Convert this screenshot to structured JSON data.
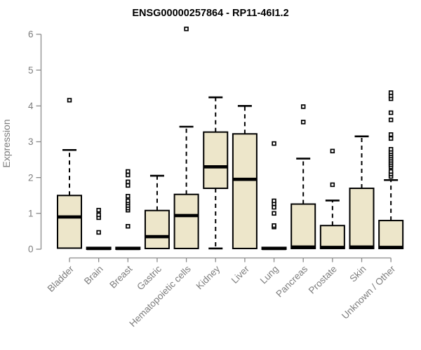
{
  "chart_data": {
    "type": "boxplot",
    "title": "ENSG00000257864 - RP11-46I1.2",
    "ylabel": "Expression",
    "xlabel": "",
    "ylim": [
      0,
      6
    ],
    "yticks": [
      0,
      1,
      2,
      3,
      4,
      5,
      6
    ],
    "grid": false,
    "legend": "none",
    "categories": [
      "Bladder",
      "Brain",
      "Breast",
      "Gastric",
      "Hematopoietic cells",
      "Kidney",
      "Liver",
      "Lung",
      "Pancreas",
      "Prostate",
      "Skin",
      "Unknown / Other"
    ],
    "boxes": [
      {
        "label": "Bladder",
        "q1": 0.03,
        "median": 0.9,
        "q3": 1.5,
        "whisker_low": 0.03,
        "whisker_high": 2.77,
        "outliers": [
          4.16
        ]
      },
      {
        "label": "Brain",
        "q1": 0.0,
        "median": 0.02,
        "q3": 0.05,
        "whisker_low": 0.0,
        "whisker_high": 0.05,
        "outliers": [
          0.47,
          0.88,
          0.96,
          1.09
        ]
      },
      {
        "label": "Breast",
        "q1": 0.0,
        "median": 0.02,
        "q3": 0.05,
        "whisker_low": 0.0,
        "whisker_high": 0.05,
        "outliers": [
          0.64,
          1.09,
          1.15,
          1.22,
          1.29,
          1.35,
          1.48,
          1.78,
          1.88,
          2.07,
          2.17
        ]
      },
      {
        "label": "Gastric",
        "q1": 0.02,
        "median": 0.35,
        "q3": 1.08,
        "whisker_low": 0.02,
        "whisker_high": 2.05,
        "outliers": []
      },
      {
        "label": "Hematopoietic cells",
        "q1": 0.02,
        "median": 0.94,
        "q3": 1.53,
        "whisker_low": 0.02,
        "whisker_high": 3.42,
        "outliers": [
          6.15
        ]
      },
      {
        "label": "Kidney",
        "q1": 1.7,
        "median": 2.3,
        "q3": 3.27,
        "whisker_low": 0.02,
        "whisker_high": 4.24,
        "outliers": []
      },
      {
        "label": "Liver",
        "q1": 0.02,
        "median": 1.95,
        "q3": 3.22,
        "whisker_low": 0.02,
        "whisker_high": 4.0,
        "outliers": []
      },
      {
        "label": "Lung",
        "q1": 0.0,
        "median": 0.02,
        "q3": 0.05,
        "whisker_low": 0.0,
        "whisker_high": 0.05,
        "outliers": [
          0.62,
          0.66,
          1.0,
          1.17,
          1.27,
          1.35,
          2.95
        ]
      },
      {
        "label": "Pancreas",
        "q1": 0.02,
        "median": 0.06,
        "q3": 1.26,
        "whisker_low": 0.02,
        "whisker_high": 2.53,
        "outliers": [
          3.55,
          3.98
        ]
      },
      {
        "label": "Prostate",
        "q1": 0.02,
        "median": 0.05,
        "q3": 0.66,
        "whisker_low": 0.02,
        "whisker_high": 1.36,
        "outliers": [
          1.8,
          2.74
        ]
      },
      {
        "label": "Skin",
        "q1": 0.02,
        "median": 0.06,
        "q3": 1.7,
        "whisker_low": 0.02,
        "whisker_high": 3.15,
        "outliers": []
      },
      {
        "label": "Unknown / Other",
        "q1": 0.02,
        "median": 0.05,
        "q3": 0.8,
        "whisker_low": 0.02,
        "whisker_high": 1.93,
        "outliers": [
          2.03,
          2.1,
          2.17,
          2.3,
          2.36,
          2.42,
          2.48,
          2.54,
          2.6,
          2.66,
          2.72,
          2.79,
          3.09,
          3.2,
          3.61,
          3.81,
          4.2,
          4.28,
          4.37
        ]
      }
    ],
    "colors": {
      "box_fill": "#EDE6CA",
      "box_stroke": "#000000",
      "median": "#000000",
      "whisker": "#000000",
      "axis_line": "#8a8a8a",
      "axis_text": "#7d7d7d",
      "title": "#000000",
      "background": "#ffffff"
    }
  }
}
